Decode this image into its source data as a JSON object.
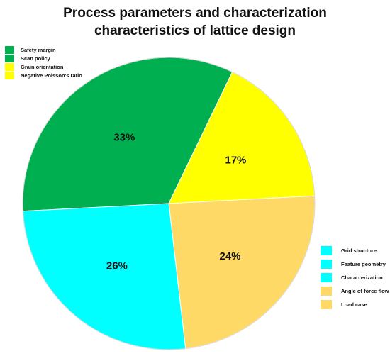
{
  "chart_data": {
    "type": "pie",
    "title": [
      "Process parameters and characterization",
      "characteristics of lattice design"
    ],
    "slices": [
      {
        "label": "33%",
        "value": 33,
        "color": "#00B050"
      },
      {
        "label": "17%",
        "value": 17,
        "color": "#FFFF00"
      },
      {
        "label": "24%",
        "value": 24,
        "color": "#FFD966"
      },
      {
        "label": "26%",
        "value": 26,
        "color": "#00FFFF"
      }
    ],
    "legend_top_left": [
      {
        "label": "Safety margin",
        "color": "#00B050"
      },
      {
        "label": "Scan policy",
        "color": "#00B050"
      },
      {
        "label": "Grain orientation",
        "color": "#FFFF00"
      },
      {
        "label": "Negative Poisson's ratio",
        "color": "#FFFF00"
      }
    ],
    "legend_bottom_right": [
      {
        "label": "Grid structure",
        "color": "#00FFFF"
      },
      {
        "label": "Feature geometry",
        "color": "#00FFFF"
      },
      {
        "label": "Characterization",
        "color": "#00FFFF"
      },
      {
        "label": "Angle of force flow",
        "color": "#FFD966"
      },
      {
        "label": "Load case",
        "color": "#FFD966"
      }
    ]
  }
}
